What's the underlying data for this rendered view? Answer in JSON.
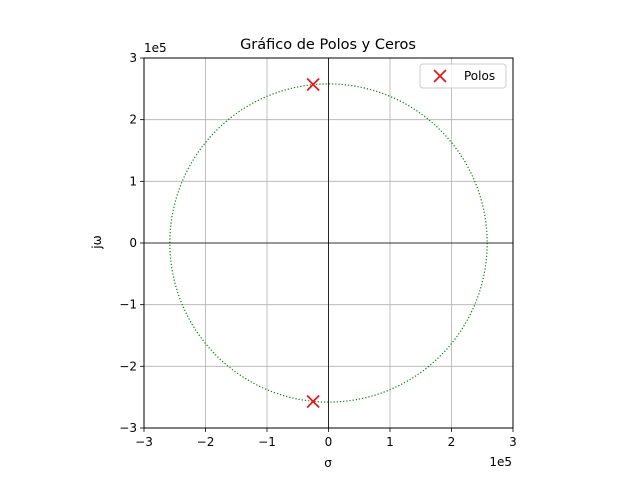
{
  "chart_data": {
    "type": "scatter",
    "title": "Gráfico de Polos y Ceros",
    "xlabel": "σ",
    "ylabel": "jω",
    "xlim": [
      -300000,
      300000
    ],
    "ylim": [
      -300000,
      300000
    ],
    "x_ticks": [
      -300000,
      -200000,
      -100000,
      0,
      100000,
      200000,
      300000
    ],
    "y_ticks": [
      -300000,
      -200000,
      -100000,
      0,
      100000,
      200000,
      300000
    ],
    "x_tick_labels": [
      "−3",
      "−2",
      "−1",
      "0",
      "1",
      "2",
      "3"
    ],
    "y_tick_labels": [
      "−3",
      "−2",
      "−1",
      "0",
      "1",
      "2",
      "3"
    ],
    "x_offset_label": "1e5",
    "y_offset_label": "1e5",
    "grid": true,
    "legend_position": "top-right",
    "series": [
      {
        "name": "Polos",
        "marker": "x",
        "color": "#e31a1c",
        "points": [
          {
            "x": -25000,
            "y": 257000
          },
          {
            "x": -25000,
            "y": -257000
          }
        ]
      }
    ],
    "reference_circle": {
      "radius": 258000,
      "style": "dotted",
      "color": "#008000"
    },
    "axis_lines_at_zero": true
  }
}
